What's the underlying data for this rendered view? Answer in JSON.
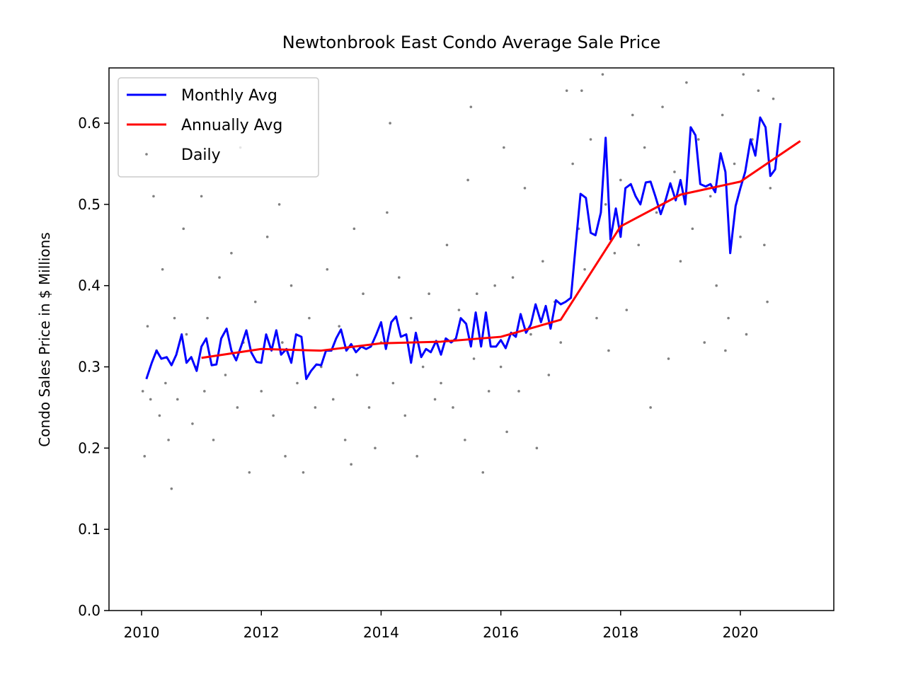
{
  "chart_data": {
    "type": "line",
    "title": "Newtonbrook East Condo Average Sale Price",
    "y_label": "Condo Sales Price in $ Millions",
    "xlim": [
      2009.456,
      2021.56
    ],
    "ylim": [
      0,
      0.668
    ],
    "xticks": [
      2010,
      2012,
      2014,
      2016,
      2018,
      2020
    ],
    "yticks": [
      {
        "value": 0,
        "label": "0.0"
      },
      0.1,
      0.2,
      0.3,
      0.4,
      0.5,
      0.6
    ],
    "legend": "upper left",
    "series": [
      {
        "name": "Monthly Avg",
        "color": "#0000ff",
        "x": [
          2010.08,
          2010.17,
          2010.25,
          2010.33,
          2010.42,
          2010.5,
          2010.58,
          2010.67,
          2010.75,
          2010.83,
          2010.92,
          2011.0,
          2011.08,
          2011.17,
          2011.25,
          2011.33,
          2011.42,
          2011.5,
          2011.58,
          2011.67,
          2011.75,
          2011.83,
          2011.92,
          2012.0,
          2012.08,
          2012.17,
          2012.25,
          2012.33,
          2012.42,
          2012.5,
          2012.58,
          2012.67,
          2012.75,
          2012.83,
          2012.92,
          2013.0,
          2013.08,
          2013.17,
          2013.25,
          2013.33,
          2013.42,
          2013.5,
          2013.58,
          2013.67,
          2013.75,
          2013.83,
          2013.92,
          2014.0,
          2014.08,
          2014.17,
          2014.25,
          2014.33,
          2014.42,
          2014.5,
          2014.58,
          2014.67,
          2014.75,
          2014.83,
          2014.92,
          2015.0,
          2015.08,
          2015.17,
          2015.25,
          2015.33,
          2015.42,
          2015.5,
          2015.58,
          2015.67,
          2015.75,
          2015.83,
          2015.92,
          2016.0,
          2016.08,
          2016.17,
          2016.25,
          2016.33,
          2016.42,
          2016.5,
          2016.58,
          2016.67,
          2016.75,
          2016.83,
          2016.92,
          2017.0,
          2017.08,
          2017.17,
          2017.25,
          2017.33,
          2017.42,
          2017.5,
          2017.58,
          2017.67,
          2017.75,
          2017.83,
          2017.92,
          2018.0,
          2018.08,
          2018.17,
          2018.25,
          2018.33,
          2018.42,
          2018.5,
          2018.58,
          2018.67,
          2018.75,
          2018.83,
          2018.92,
          2019.0,
          2019.08,
          2019.17,
          2019.25,
          2019.33,
          2019.42,
          2019.5,
          2019.58,
          2019.67,
          2019.75,
          2019.83,
          2019.92,
          2020.0,
          2020.08,
          2020.17,
          2020.25,
          2020.33,
          2020.42,
          2020.5,
          2020.58,
          2020.67
        ],
        "values": [
          0.285,
          0.305,
          0.32,
          0.31,
          0.312,
          0.302,
          0.315,
          0.34,
          0.305,
          0.312,
          0.295,
          0.325,
          0.335,
          0.302,
          0.303,
          0.335,
          0.347,
          0.32,
          0.308,
          0.327,
          0.345,
          0.318,
          0.306,
          0.305,
          0.34,
          0.32,
          0.345,
          0.315,
          0.322,
          0.305,
          0.34,
          0.337,
          0.285,
          0.295,
          0.303,
          0.302,
          0.32,
          0.32,
          0.335,
          0.346,
          0.32,
          0.328,
          0.318,
          0.325,
          0.322,
          0.325,
          0.34,
          0.355,
          0.322,
          0.355,
          0.362,
          0.337,
          0.34,
          0.305,
          0.342,
          0.312,
          0.322,
          0.318,
          0.332,
          0.315,
          0.335,
          0.33,
          0.335,
          0.36,
          0.353,
          0.325,
          0.367,
          0.325,
          0.367,
          0.325,
          0.325,
          0.333,
          0.323,
          0.342,
          0.337,
          0.365,
          0.342,
          0.352,
          0.377,
          0.355,
          0.375,
          0.347,
          0.382,
          0.377,
          0.38,
          0.385,
          0.45,
          0.513,
          0.508,
          0.465,
          0.462,
          0.49,
          0.582,
          0.457,
          0.495,
          0.46,
          0.52,
          0.525,
          0.51,
          0.5,
          0.527,
          0.528,
          0.51,
          0.488,
          0.505,
          0.526,
          0.505,
          0.53,
          0.5,
          0.595,
          0.585,
          0.525,
          0.522,
          0.525,
          0.515,
          0.563,
          0.54,
          0.44,
          0.498,
          0.52,
          0.54,
          0.58,
          0.56,
          0.607,
          0.595,
          0.535,
          0.543,
          0.6
        ]
      },
      {
        "name": "Annually Avg",
        "color": "#ff0000",
        "x": [
          2011,
          2012,
          2013,
          2014,
          2015,
          2016,
          2017,
          2018,
          2019,
          2020,
          2021
        ],
        "values": [
          0.311,
          0.322,
          0.32,
          0.329,
          0.331,
          0.337,
          0.358,
          0.473,
          0.512,
          0.528,
          0.578
        ]
      },
      {
        "name": "Daily",
        "color": "#808080",
        "type": "scatter",
        "x": [
          2010.02,
          2010.05,
          2010.1,
          2010.15,
          2010.2,
          2010.25,
          2010.3,
          2010.35,
          2010.4,
          2010.45,
          2010.5,
          2010.55,
          2010.6,
          2010.7,
          2010.75,
          2010.85,
          2010.9,
          2011.0,
          2011.05,
          2011.1,
          2011.2,
          2011.3,
          2011.4,
          2011.5,
          2011.6,
          2011.65,
          2011.7,
          2011.8,
          2011.9,
          2012.0,
          2012.1,
          2012.2,
          2012.3,
          2012.35,
          2012.4,
          2012.5,
          2012.6,
          2012.7,
          2012.8,
          2012.9,
          2013.0,
          2013.1,
          2013.2,
          2013.3,
          2013.4,
          2013.5,
          2013.55,
          2013.6,
          2013.7,
          2013.8,
          2013.9,
          2014.0,
          2014.1,
          2014.15,
          2014.2,
          2014.3,
          2014.4,
          2014.5,
          2014.6,
          2014.7,
          2014.8,
          2014.9,
          2015.0,
          2015.1,
          2015.2,
          2015.3,
          2015.4,
          2015.45,
          2015.5,
          2015.55,
          2015.6,
          2015.7,
          2015.8,
          2015.9,
          2016.0,
          2016.05,
          2016.1,
          2016.2,
          2016.3,
          2016.4,
          2016.5,
          2016.6,
          2016.7,
          2016.8,
          2016.9,
          2017.0,
          2017.1,
          2017.2,
          2017.3,
          2017.35,
          2017.4,
          2017.5,
          2017.6,
          2017.7,
          2017.75,
          2017.8,
          2017.9,
          2018.0,
          2018.1,
          2018.2,
          2018.3,
          2018.4,
          2018.5,
          2018.6,
          2018.7,
          2018.8,
          2018.9,
          2019.0,
          2019.1,
          2019.2,
          2019.3,
          2019.4,
          2019.5,
          2019.6,
          2019.7,
          2019.75,
          2019.8,
          2019.9,
          2020.0,
          2020.05,
          2020.1,
          2020.2,
          2020.3,
          2020.4,
          2020.45,
          2020.5,
          2020.55
        ],
        "values": [
          0.27,
          0.19,
          0.35,
          0.26,
          0.51,
          0.32,
          0.24,
          0.42,
          0.28,
          0.21,
          0.15,
          0.36,
          0.26,
          0.47,
          0.34,
          0.23,
          0.3,
          0.51,
          0.27,
          0.36,
          0.21,
          0.41,
          0.29,
          0.44,
          0.25,
          0.57,
          0.33,
          0.17,
          0.38,
          0.27,
          0.46,
          0.24,
          0.5,
          0.33,
          0.19,
          0.4,
          0.28,
          0.17,
          0.36,
          0.25,
          0.3,
          0.42,
          0.26,
          0.35,
          0.21,
          0.18,
          0.47,
          0.29,
          0.39,
          0.25,
          0.2,
          0.33,
          0.49,
          0.6,
          0.28,
          0.41,
          0.24,
          0.36,
          0.19,
          0.3,
          0.39,
          0.26,
          0.28,
          0.45,
          0.25,
          0.37,
          0.21,
          0.53,
          0.62,
          0.31,
          0.39,
          0.17,
          0.27,
          0.4,
          0.3,
          0.57,
          0.22,
          0.41,
          0.27,
          0.52,
          0.34,
          0.2,
          0.43,
          0.29,
          0.38,
          0.33,
          0.64,
          0.55,
          0.47,
          0.64,
          0.42,
          0.58,
          0.36,
          0.66,
          0.5,
          0.32,
          0.44,
          0.53,
          0.37,
          0.61,
          0.45,
          0.57,
          0.25,
          0.49,
          0.62,
          0.31,
          0.54,
          0.43,
          0.65,
          0.47,
          0.58,
          0.33,
          0.51,
          0.4,
          0.61,
          0.32,
          0.36,
          0.55,
          0.46,
          0.66,
          0.34,
          0.58,
          0.64,
          0.45,
          0.38,
          0.52,
          0.63
        ]
      }
    ]
  }
}
